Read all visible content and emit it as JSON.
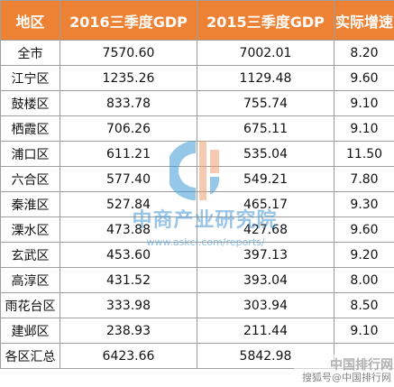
{
  "table": {
    "headers": [
      "地区",
      "2016三季度GDP",
      "2015三季度GDP",
      "实际增速"
    ],
    "rows": [
      [
        "全市",
        "7570.60",
        "7002.01",
        "8.20"
      ],
      [
        "江宁区",
        "1235.26",
        "1129.48",
        "9.60"
      ],
      [
        "鼓楼区",
        "833.78",
        "755.74",
        "9.10"
      ],
      [
        "栖霞区",
        "706.26",
        "675.11",
        "9.10"
      ],
      [
        "浦口区",
        "611.21",
        "535.04",
        "11.50"
      ],
      [
        "六合区",
        "577.40",
        "549.21",
        "7.80"
      ],
      [
        "秦淮区",
        "527.84",
        "465.17",
        "9.30"
      ],
      [
        "溧水区",
        "473.88",
        "427.68",
        "9.60"
      ],
      [
        "玄武区",
        "453.60",
        "397.13",
        "9.20"
      ],
      [
        "高淳区",
        "431.52",
        "393.04",
        "8.00"
      ],
      [
        "雨花台区",
        "333.98",
        "303.94",
        "8.50"
      ],
      [
        "建邺区",
        "238.93",
        "211.44",
        "9.10"
      ],
      [
        "各区汇总",
        "6423.66",
        "5842.98",
        ""
      ]
    ]
  },
  "watermark": {
    "brand": "中商产业研究院",
    "url": "www.askci.com/reports/",
    "logo_colors": [
      "#3d9ad6",
      "#f0a070"
    ]
  },
  "source_watermark": {
    "brand": "中国排行网",
    "author": "搜狐号@中国排行网"
  },
  "colors": {
    "header_bg": "#ee8234",
    "header_text": "#ffffff",
    "grid": "#9e9e9e"
  }
}
